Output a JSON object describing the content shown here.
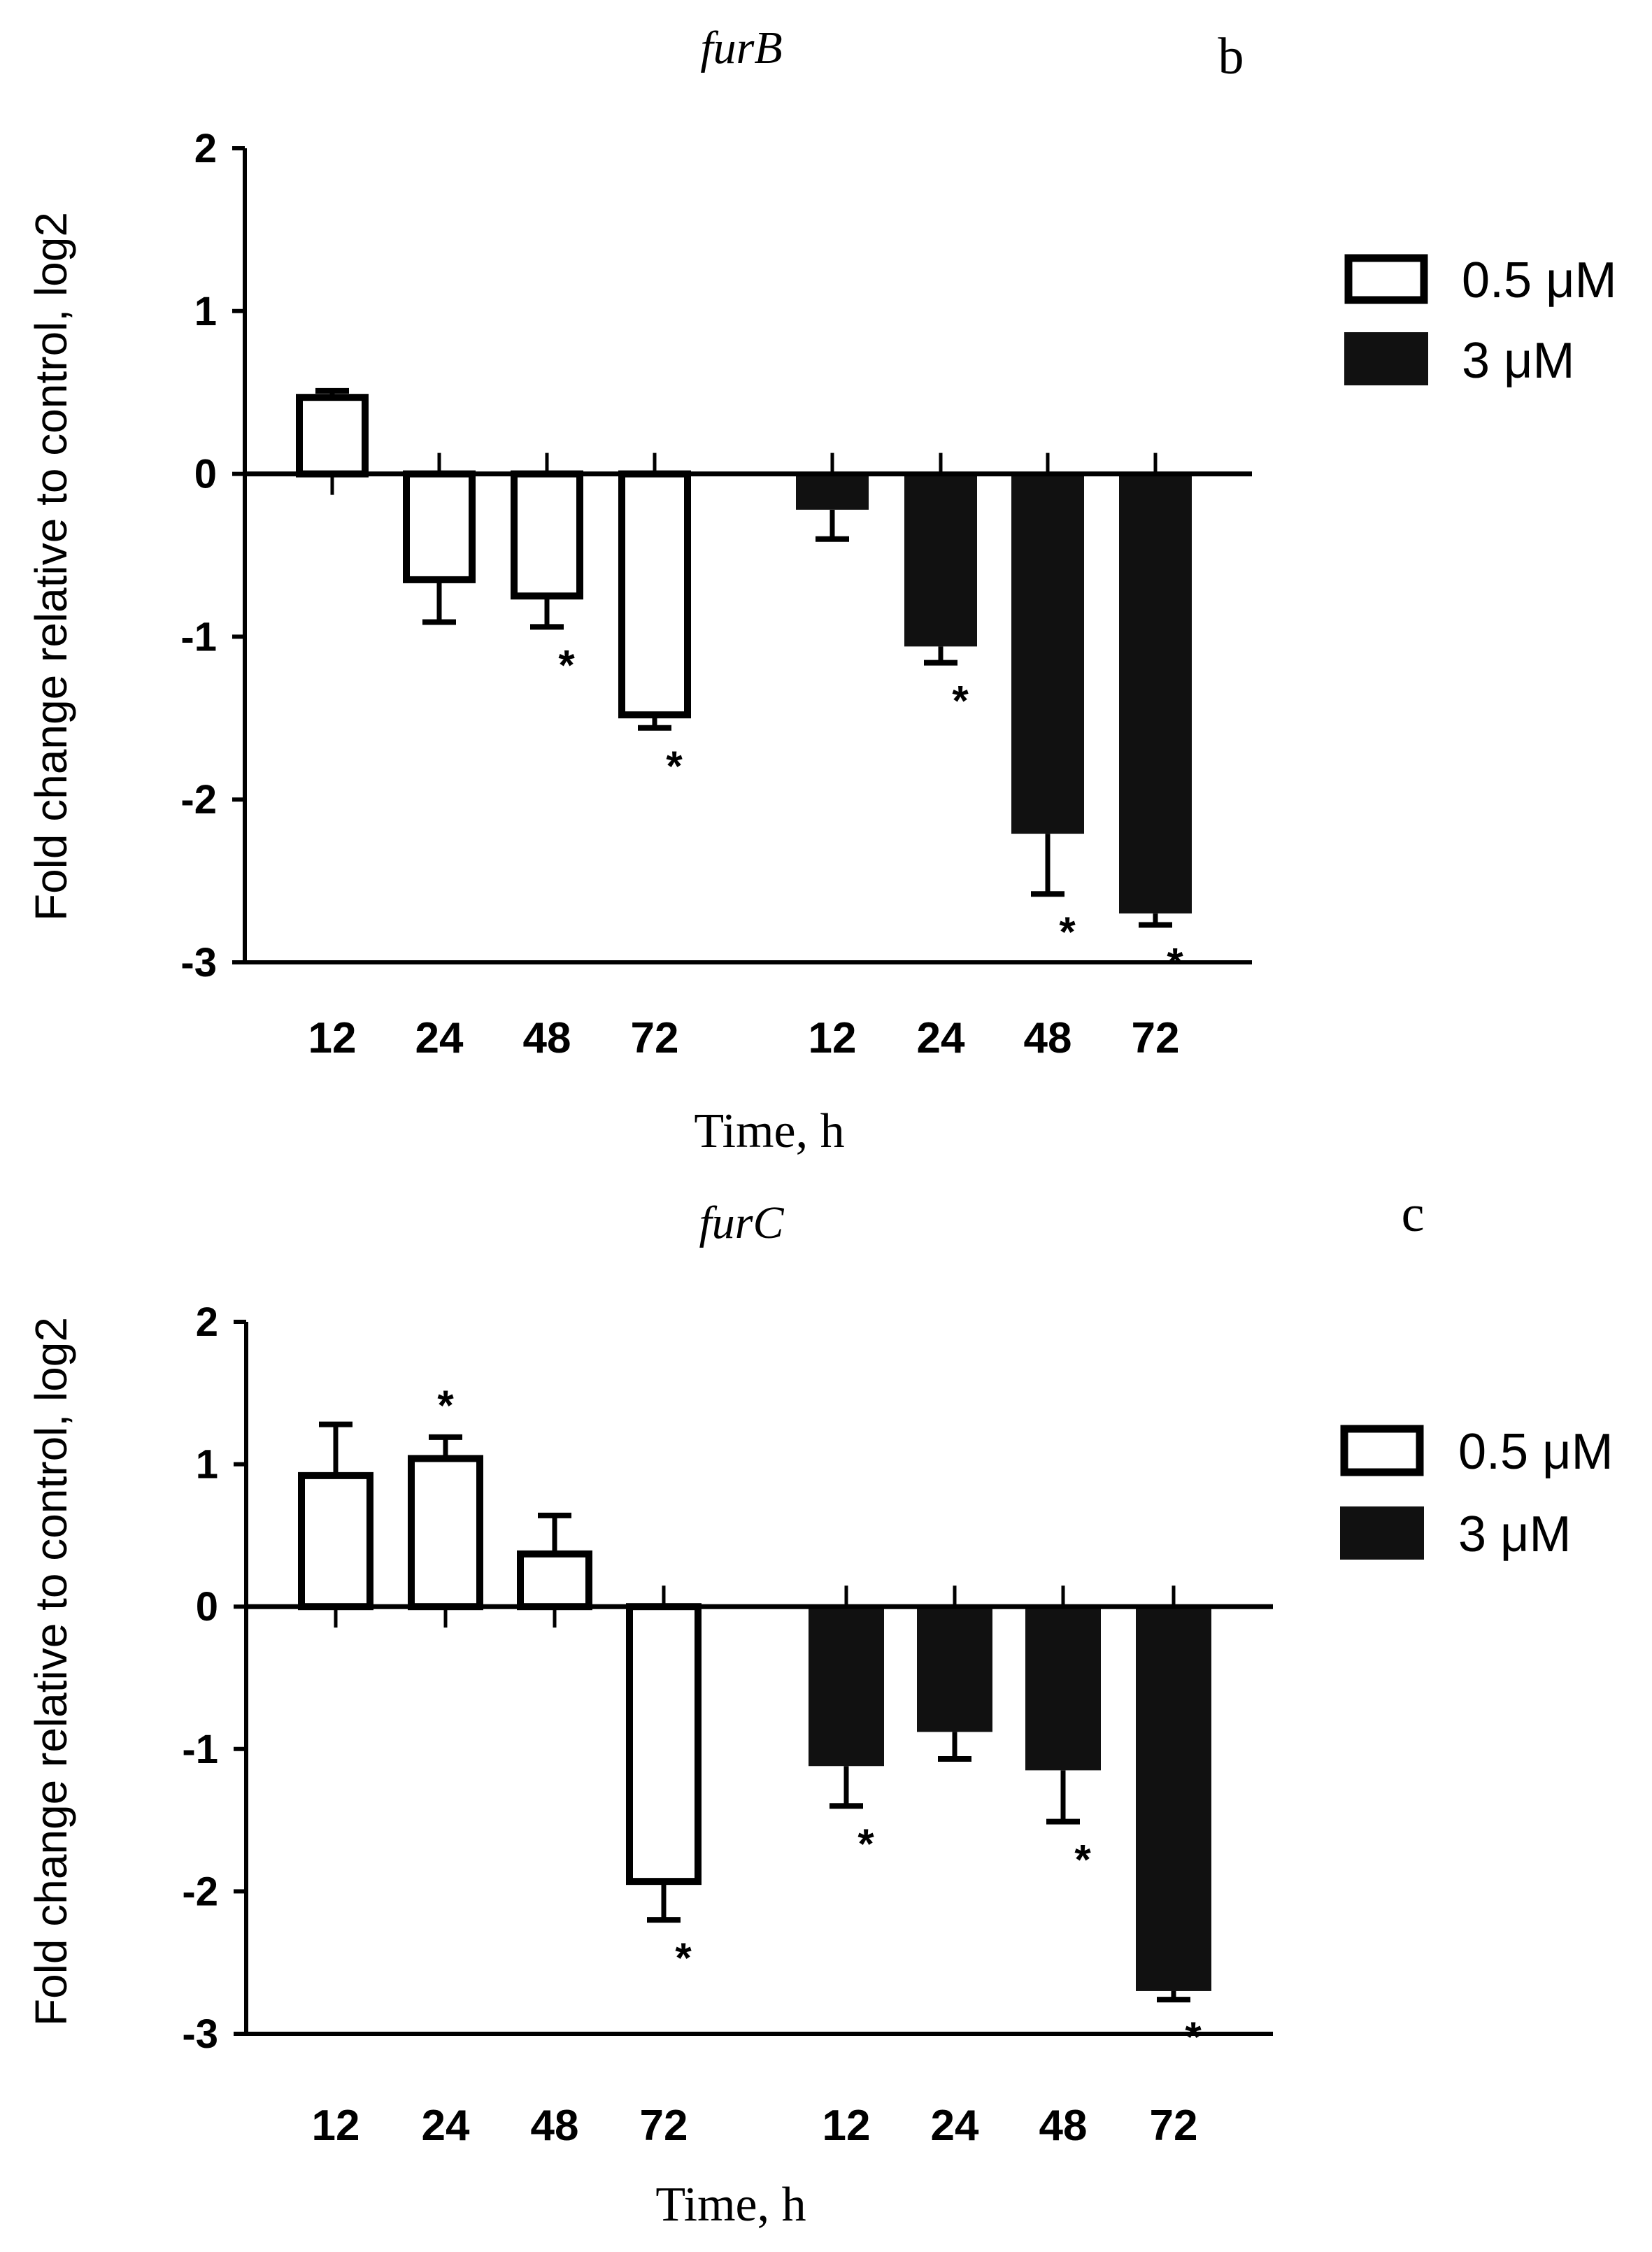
{
  "colors": {
    "ink": "#000000",
    "paper": "#ffffff",
    "bar_0_5uM": "#ffffff",
    "bar_3uM": "#111111"
  },
  "chart_data": [
    {
      "type": "bar",
      "panel": "b",
      "title": "furB",
      "xlabel": "Time, h",
      "ylabel": "Fold change relative to control, log2",
      "ylim": [
        -3,
        2
      ],
      "yticks": [
        2,
        1,
        0,
        -1,
        -2,
        -3
      ],
      "yticklabels": [
        "2",
        "1",
        "0",
        "-1",
        "-2",
        "-3"
      ],
      "grid": false,
      "legend": {
        "position": "right",
        "entries": [
          "0.5 μM",
          "3 μM"
        ]
      },
      "categories": [
        "12",
        "24",
        "48",
        "72"
      ],
      "series": [
        {
          "name": "0.5 μM",
          "values": [
            0.47,
            -0.65,
            -0.75,
            -1.48
          ],
          "errors": [
            0.04,
            0.26,
            0.19,
            0.08
          ],
          "significant": [
            false,
            false,
            true,
            true
          ]
        },
        {
          "name": "3 μM",
          "values": [
            -0.22,
            -1.06,
            -2.21,
            -2.7
          ],
          "errors": [
            0.18,
            0.1,
            0.37,
            0.07
          ],
          "significant": [
            false,
            true,
            true,
            true
          ]
        }
      ]
    },
    {
      "type": "bar",
      "panel": "c",
      "title": "furC",
      "xlabel": "Time, h",
      "ylabel": "Fold change relative to control, log2",
      "ylim": [
        -3,
        2
      ],
      "yticks": [
        2,
        1,
        0,
        -1,
        -2,
        -3
      ],
      "yticklabels": [
        "2",
        "1",
        "0",
        "-1",
        "-2",
        "-3"
      ],
      "grid": false,
      "legend": {
        "position": "right",
        "entries": [
          "0.5 μM",
          "3 μM"
        ]
      },
      "categories": [
        "12",
        "24",
        "48",
        "72"
      ],
      "series": [
        {
          "name": "0.5 μM",
          "values": [
            0.92,
            1.04,
            0.37,
            -1.93
          ],
          "errors": [
            0.36,
            0.15,
            0.27,
            0.27
          ],
          "significant": [
            false,
            true,
            false,
            true
          ]
        },
        {
          "name": "3 μM",
          "values": [
            -1.12,
            -0.88,
            -1.15,
            -2.7
          ],
          "errors": [
            0.28,
            0.19,
            0.36,
            0.06
          ],
          "significant": [
            true,
            false,
            true,
            true
          ]
        }
      ]
    }
  ]
}
